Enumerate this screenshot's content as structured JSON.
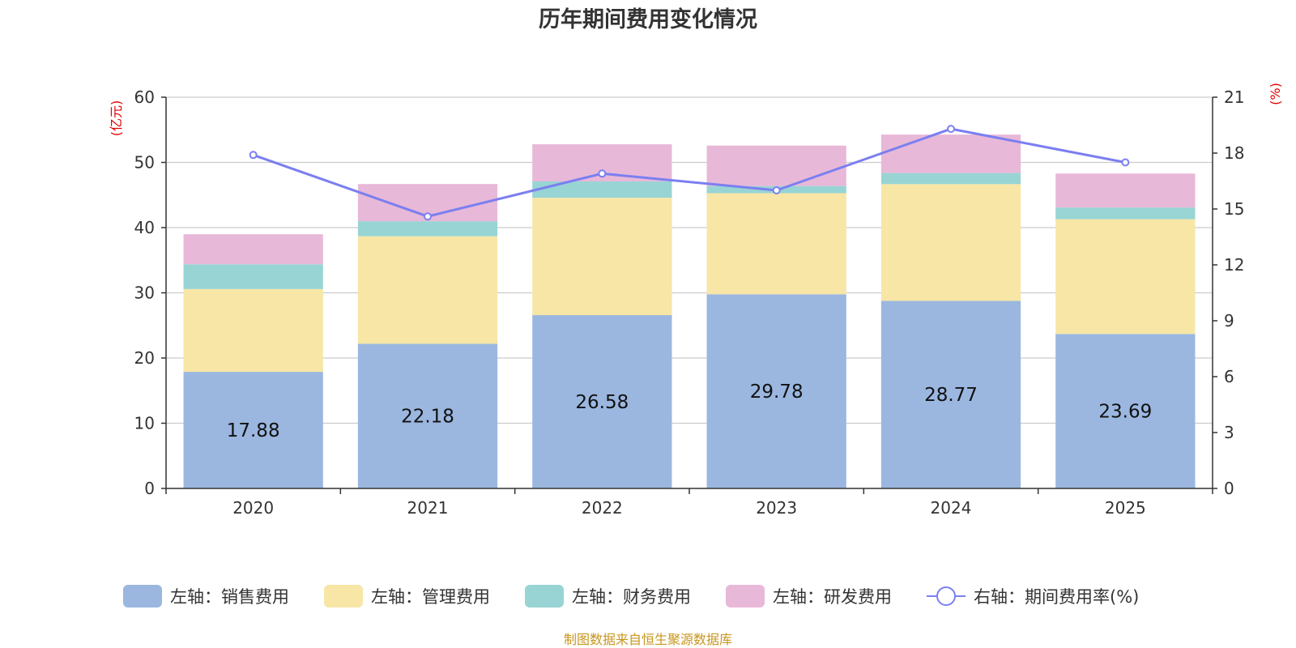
{
  "chart_data": {
    "type": "bar",
    "stacked": true,
    "title": "历年期间费用变化情况",
    "categories": [
      "2020",
      "2021",
      "2022",
      "2023",
      "2024",
      "2025"
    ],
    "y_left": {
      "unit": "(亿元)",
      "range": [
        0,
        60
      ],
      "ticks": [
        0,
        10,
        20,
        30,
        40,
        50,
        60
      ]
    },
    "y_right": {
      "unit": "(%)",
      "range": [
        0,
        21
      ],
      "ticks": [
        0,
        3,
        6,
        9,
        12,
        15,
        18,
        21
      ]
    },
    "series": [
      {
        "name": "左轴：销售费用",
        "axis": "left",
        "kind": "bar",
        "color": "#9bb7e0",
        "values": [
          17.88,
          22.18,
          26.58,
          29.78,
          28.77,
          23.69
        ],
        "show_labels": true
      },
      {
        "name": "左轴：管理费用",
        "axis": "left",
        "kind": "bar",
        "color": "#f7e6a6",
        "values": [
          12.7,
          16.5,
          18.0,
          15.5,
          17.9,
          17.6
        ]
      },
      {
        "name": "左轴：财务费用",
        "axis": "left",
        "kind": "bar",
        "color": "#98d4d4",
        "values": [
          3.8,
          2.3,
          2.5,
          1.1,
          1.7,
          1.8
        ]
      },
      {
        "name": "左轴：研发费用",
        "axis": "left",
        "kind": "bar",
        "color": "#e8b8d8",
        "values": [
          4.6,
          5.7,
          5.7,
          6.2,
          5.9,
          5.2
        ]
      },
      {
        "name": "右轴：期间费用率(%)",
        "axis": "right",
        "kind": "line",
        "color": "#7b7ff0",
        "values": [
          17.9,
          14.6,
          16.9,
          16.0,
          19.3,
          17.5
        ]
      }
    ],
    "legend_position": "bottom",
    "grid": true
  },
  "source": "制图数据来自恒生聚源数据库"
}
